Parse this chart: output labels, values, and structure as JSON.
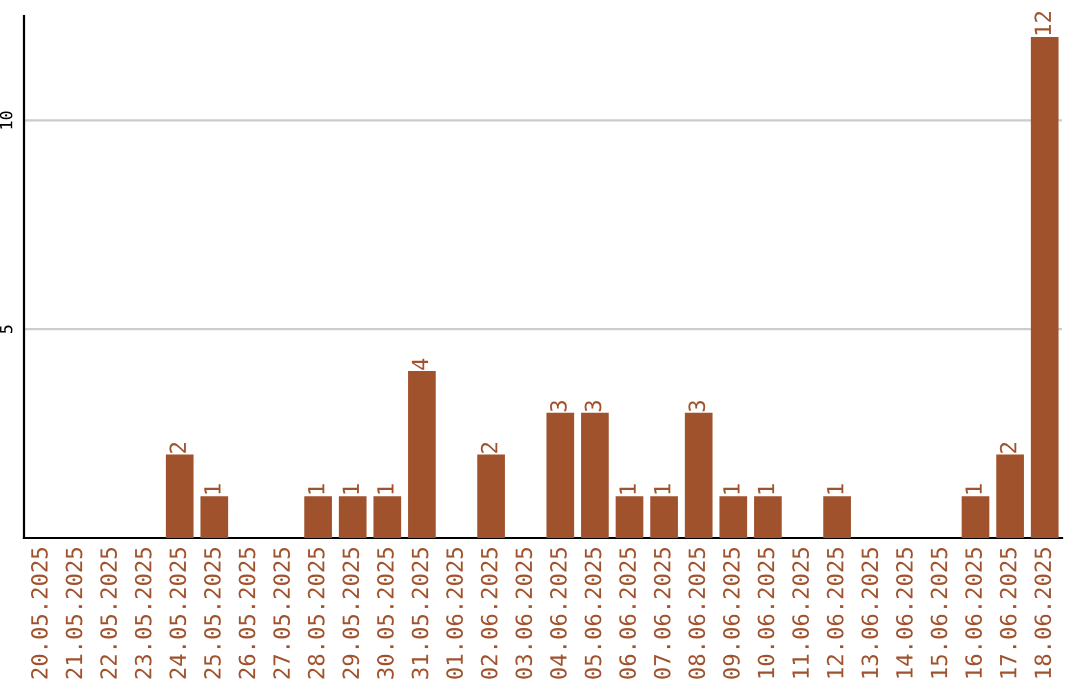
{
  "chart_data": {
    "type": "bar",
    "categories": [
      "20.05.2025",
      "21.05.2025",
      "22.05.2025",
      "23.05.2025",
      "24.05.2025",
      "25.05.2025",
      "26.05.2025",
      "27.05.2025",
      "28.05.2025",
      "29.05.2025",
      "30.05.2025",
      "31.05.2025",
      "01.06.2025",
      "02.06.2025",
      "03.06.2025",
      "04.06.2025",
      "05.06.2025",
      "06.06.2025",
      "07.06.2025",
      "08.06.2025",
      "09.06.2025",
      "10.06.2025",
      "11.06.2025",
      "12.06.2025",
      "13.06.2025",
      "14.06.2025",
      "15.06.2025",
      "16.06.2025",
      "17.06.2025",
      "18.06.2025"
    ],
    "values": [
      0,
      0,
      0,
      0,
      2,
      1,
      0,
      0,
      1,
      1,
      1,
      4,
      0,
      2,
      0,
      3,
      3,
      1,
      1,
      3,
      1,
      1,
      0,
      1,
      0,
      0,
      0,
      1,
      2,
      12
    ],
    "value_labels": [
      null,
      null,
      null,
      null,
      "2",
      "1",
      null,
      null,
      "1",
      "1",
      "1",
      "4",
      null,
      "2",
      null,
      "3",
      "3",
      "1",
      "1",
      "3",
      "1",
      "1",
      null,
      "1",
      null,
      null,
      null,
      "1",
      "2",
      "12"
    ],
    "color": "#a0522d",
    "ylim": [
      0,
      12.5
    ],
    "yticks": [
      5,
      10
    ],
    "grid": "y"
  }
}
